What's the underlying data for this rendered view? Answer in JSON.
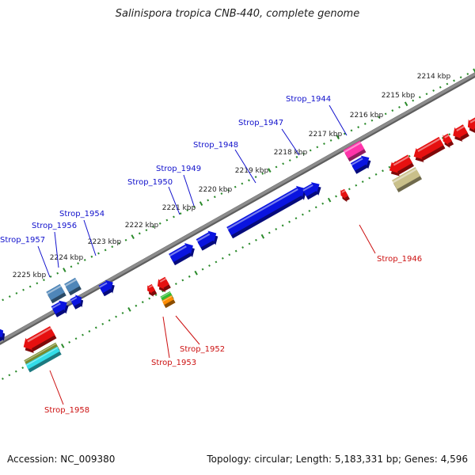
{
  "title": "Salinispora tropica CNB-440, complete genome",
  "footer": {
    "accession": "Accession: NC_009380",
    "topology": "Topology: circular; Length: 5,183,331 bp; Genes: 4,596"
  },
  "colors": {
    "backbone": "#8c8c8c",
    "ticks": "#2a8a2a",
    "forward_gene": "#0a14e0",
    "forward_pseudo": "#4f86b8",
    "reverse_gene": "#e61010",
    "reverse_pseudo": "#c9c08a",
    "forward_label": "#1010cc",
    "reverse_label": "#cc1010",
    "magenta_gene": "#ff33aa",
    "green_gene": "#33bb33",
    "orange_gene": "#ff8c00",
    "olive_gene": "#7a8a30",
    "cyan_gene": "#33dde8"
  },
  "kbp_labels": [
    "2214 kbp",
    "2215 kbp",
    "2216 kbp",
    "2217 kbp",
    "2218 kbp",
    "2219 kbp",
    "2220 kbp",
    "2221 kbp",
    "2222 kbp",
    "2223 kbp",
    "2224 kbp",
    "2225 kbp"
  ],
  "forward_labels": [
    "Strop_1944",
    "Strop_1947",
    "Strop_1948",
    "Strop_1949",
    "Strop_1950",
    "Strop_1954",
    "Strop_1956",
    "Strop_1957"
  ],
  "reverse_labels": [
    "Strop_1946",
    "Strop_1952",
    "Strop_1953",
    "Strop_1958"
  ]
}
